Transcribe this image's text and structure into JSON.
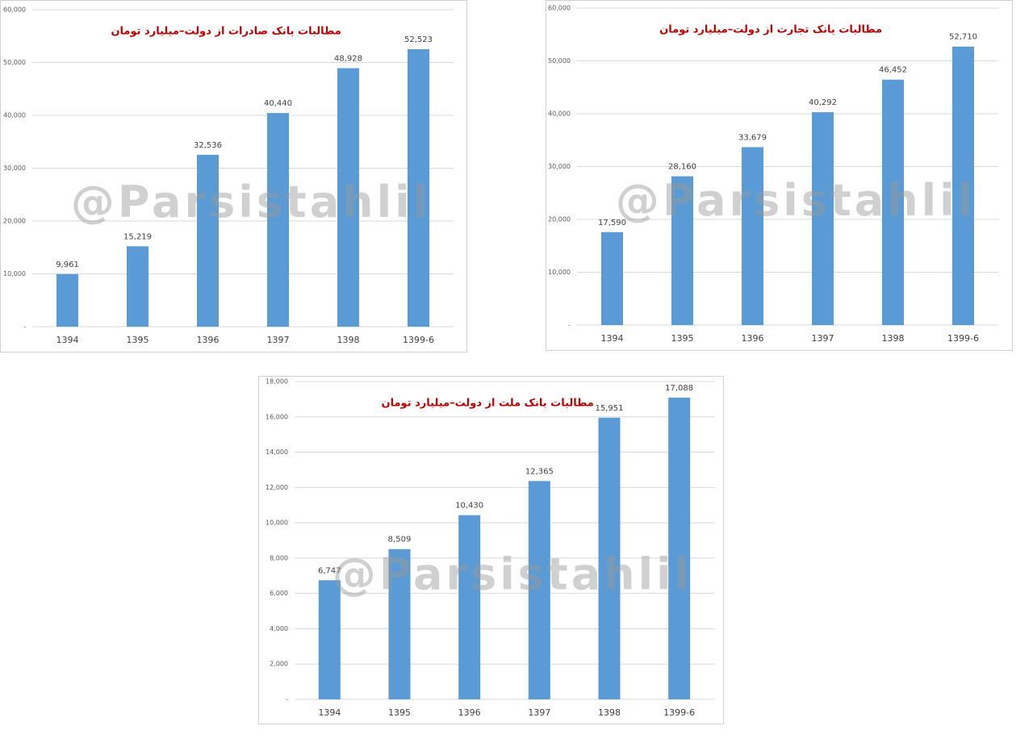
{
  "chart_data": [
    {
      "type": "bar",
      "title": "مطالبات بانک صادرات از دولت–میلیارد تومان",
      "title_color": "#c00000",
      "watermark": "@Parsistahlil",
      "categories": [
        "1394",
        "1395",
        "1396",
        "1397",
        "1398",
        "1399-6"
      ],
      "values": [
        9961,
        15219,
        32536,
        40440,
        48928,
        52523
      ],
      "value_labels": [
        "9,961",
        "15,219",
        "32,536",
        "40,440",
        "48,928",
        "52,523"
      ],
      "color": "#5b9bd5",
      "grid": true,
      "ylim": [
        0,
        60000
      ],
      "yticks": [
        {
          "value": 0,
          "label": "-"
        },
        {
          "value": 10000,
          "label": "10,000"
        },
        {
          "value": 20000,
          "label": "20,000"
        },
        {
          "value": 30000,
          "label": "30,000"
        },
        {
          "value": 40000,
          "label": "40,000"
        },
        {
          "value": 50000,
          "label": "50,000"
        },
        {
          "value": 60000,
          "label": "60,000"
        }
      ]
    },
    {
      "type": "bar",
      "title": "مطالبات بانک تجارت از دولت–میلیارد تومان",
      "title_color": "#c00000",
      "watermark": "@Parsistahlil",
      "categories": [
        "1394",
        "1395",
        "1396",
        "1397",
        "1398",
        "1399-6"
      ],
      "values": [
        17590,
        28160,
        33679,
        40292,
        46452,
        52710
      ],
      "value_labels": [
        "17,590",
        "28,160",
        "33,679",
        "40,292",
        "46,452",
        "52,710"
      ],
      "color": "#5b9bd5",
      "grid": true,
      "ylim": [
        0,
        60000
      ],
      "yticks": [
        {
          "value": 0,
          "label": "-"
        },
        {
          "value": 10000,
          "label": "10,000"
        },
        {
          "value": 20000,
          "label": "20,000"
        },
        {
          "value": 30000,
          "label": "30,000"
        },
        {
          "value": 40000,
          "label": "40,000"
        },
        {
          "value": 50000,
          "label": "50,000"
        },
        {
          "value": 60000,
          "label": "60,000"
        }
      ]
    },
    {
      "type": "bar",
      "title": "مطالبات بانک ملت از دولت–میلیارد تومان",
      "title_color": "#c00000",
      "watermark": "@Parsistahlil",
      "categories": [
        "1394",
        "1395",
        "1396",
        "1397",
        "1398",
        "1399-6"
      ],
      "values": [
        6747,
        8509,
        10430,
        12365,
        15951,
        17088
      ],
      "value_labels": [
        "6,747",
        "8,509",
        "10,430",
        "12,365",
        "15,951",
        "17,088"
      ],
      "color": "#5b9bd5",
      "grid": true,
      "ylim": [
        0,
        18000
      ],
      "yticks": [
        {
          "value": 0,
          "label": "-"
        },
        {
          "value": 2000,
          "label": "2,000"
        },
        {
          "value": 4000,
          "label": "4,000"
        },
        {
          "value": 6000,
          "label": "6,000"
        },
        {
          "value": 8000,
          "label": "8,000"
        },
        {
          "value": 10000,
          "label": "10,000"
        },
        {
          "value": 12000,
          "label": "12,000"
        },
        {
          "value": 14000,
          "label": "14,000"
        },
        {
          "value": 16000,
          "label": "16,000"
        },
        {
          "value": 18000,
          "label": "18,000"
        }
      ]
    }
  ]
}
